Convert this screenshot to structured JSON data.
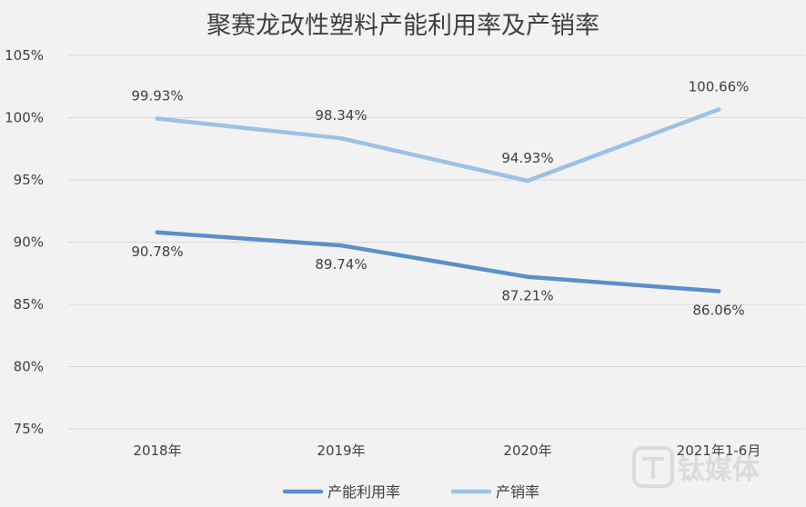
{
  "chart_data": {
    "type": "line",
    "title": "聚赛龙改性塑料产能利用率及产销率",
    "categories": [
      "2018年",
      "2019年",
      "2020年",
      "2021年1-6月"
    ],
    "series": [
      {
        "name": "产能利用率",
        "values": [
          90.78,
          89.74,
          87.21,
          86.06
        ],
        "labels": [
          "90.78%",
          "89.74%",
          "87.21%",
          "86.06%"
        ],
        "color": "#5b8fc7"
      },
      {
        "name": "产销率",
        "values": [
          99.93,
          98.34,
          94.93,
          100.66
        ],
        "labels": [
          "99.93%",
          "98.34%",
          "94.93%",
          "100.66%"
        ],
        "color": "#9dc1e5"
      }
    ],
    "ylim": [
      75,
      105
    ],
    "yticks": [
      75,
      80,
      85,
      90,
      95,
      100,
      105
    ],
    "ytick_labels": [
      "75%",
      "80%",
      "85%",
      "90%",
      "95%",
      "100%",
      "105%"
    ],
    "grid": true,
    "legend": "bottom"
  },
  "watermark": {
    "text": "钛媒体",
    "icon": "tmtpost-logo-icon"
  }
}
